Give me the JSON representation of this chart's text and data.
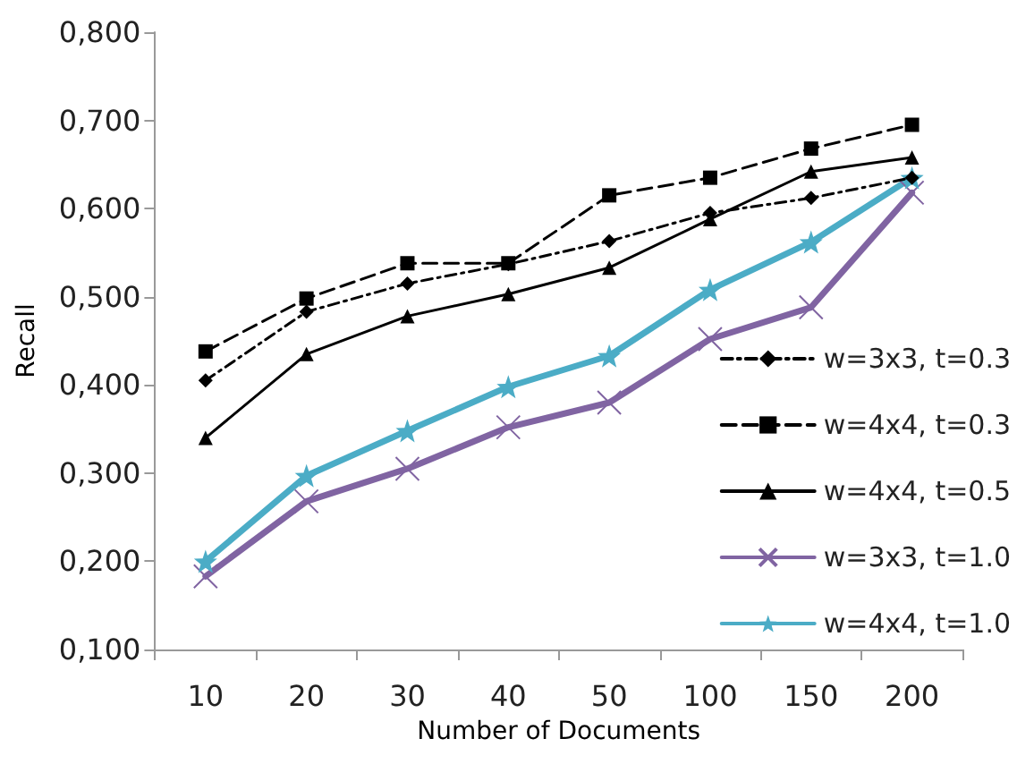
{
  "chart_data": {
    "type": "line",
    "xlabel": "Number of Documents",
    "ylabel": "Recall",
    "categories": [
      "10",
      "20",
      "30",
      "40",
      "50",
      "100",
      "150",
      "200"
    ],
    "ylim": [
      0.1,
      0.8
    ],
    "yticks": [
      {
        "value": 0.1,
        "label": "0,100"
      },
      {
        "value": 0.2,
        "label": "0,200"
      },
      {
        "value": 0.3,
        "label": "0,300"
      },
      {
        "value": 0.4,
        "label": "0,400"
      },
      {
        "value": 0.5,
        "label": "0,500"
      },
      {
        "value": 0.6,
        "label": "0,600"
      },
      {
        "value": 0.7,
        "label": "0,700"
      },
      {
        "value": 0.8,
        "label": "0,800"
      }
    ],
    "grid": false,
    "legend": "right",
    "series": [
      {
        "name": "w=3x3, t=0.3",
        "color": "#000000",
        "marker": "diamond",
        "line_style": "dotted",
        "values": [
          0.405,
          0.483,
          0.515,
          0.537,
          0.563,
          0.595,
          0.612,
          0.635
        ]
      },
      {
        "name": "w=4x4, t=0.3",
        "color": "#000000",
        "marker": "square",
        "line_style": "dashed",
        "values": [
          0.438,
          0.498,
          0.538,
          0.538,
          0.615,
          0.635,
          0.668,
          0.695
        ]
      },
      {
        "name": "w=4x4, t=0.5",
        "color": "#000000",
        "marker": "triangle",
        "line_style": "solid",
        "values": [
          0.34,
          0.435,
          0.478,
          0.503,
          0.533,
          0.588,
          0.642,
          0.658
        ]
      },
      {
        "name": "w=3x3, t=1.0",
        "color": "#8064a2",
        "marker": "cross",
        "line_style": "solid",
        "values": [
          0.183,
          0.268,
          0.305,
          0.352,
          0.38,
          0.452,
          0.488,
          0.618
        ]
      },
      {
        "name": "w=4x4, t=1.0",
        "color": "#4bacc6",
        "marker": "star",
        "line_style": "solid",
        "values": [
          0.2,
          0.297,
          0.348,
          0.398,
          0.433,
          0.508,
          0.562,
          0.635
        ]
      }
    ]
  }
}
